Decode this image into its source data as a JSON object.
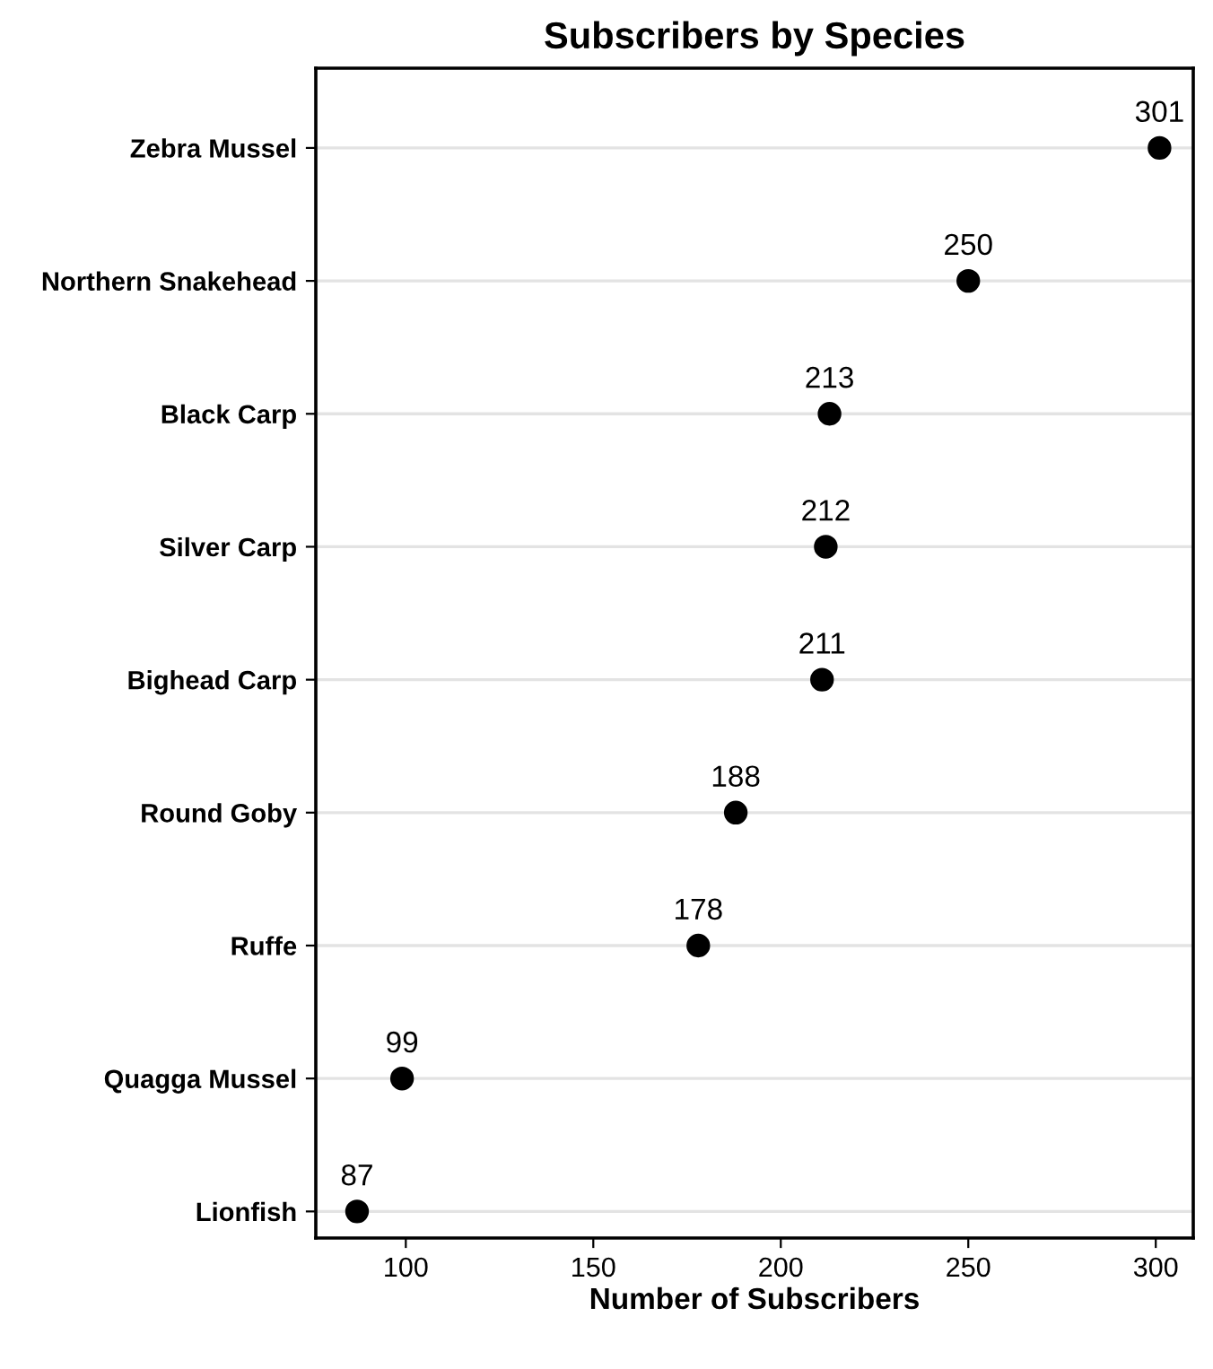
{
  "chart_data": {
    "type": "scatter",
    "orientation": "horizontal",
    "title": "Subscribers by Species",
    "xlabel": "Number of Subscribers",
    "categories": [
      "Zebra Mussel",
      "Northern Snakehead",
      "Black Carp",
      "Silver Carp",
      "Bighead Carp",
      "Round Goby",
      "Ruffe",
      "Quagga Mussel",
      "Lionfish"
    ],
    "values": [
      301,
      250,
      213,
      212,
      211,
      188,
      178,
      99,
      87
    ],
    "color": "#000000",
    "marker": "circle",
    "data_labels": true,
    "grid": "y",
    "xlim": [
      76,
      310
    ],
    "xticks": [
      100,
      150,
      200,
      250,
      300
    ]
  }
}
